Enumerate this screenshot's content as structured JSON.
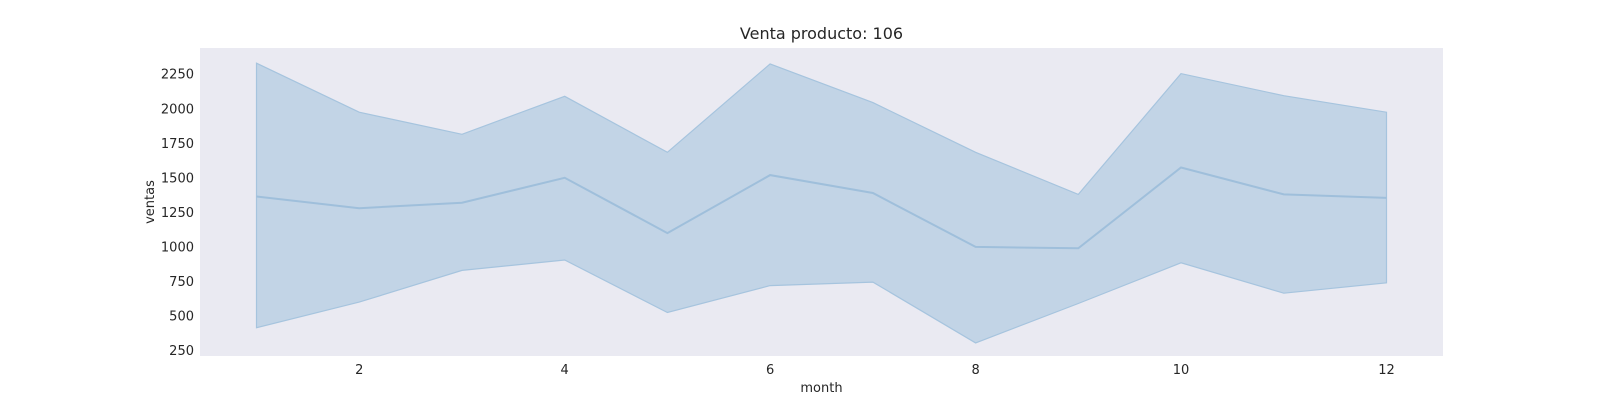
{
  "chart_data": {
    "type": "area",
    "title": "Venta producto: 106",
    "xlabel": "month",
    "ylabel": "ventas",
    "x": [
      1,
      2,
      3,
      4,
      5,
      6,
      7,
      8,
      9,
      10,
      11,
      12
    ],
    "series": [
      {
        "values": [
          1365,
          1280,
          1320,
          1500,
          1100,
          1520,
          1390,
          1000,
          990,
          1575,
          1380,
          1355
        ]
      }
    ],
    "band": {
      "upper": [
        2330,
        1975,
        1815,
        2090,
        1685,
        2325,
        2045,
        1685,
        1380,
        2255,
        2095,
        1975
      ],
      "lower": [
        415,
        600,
        830,
        905,
        525,
        720,
        745,
        305,
        590,
        885,
        665,
        740
      ]
    },
    "xticks": [
      2,
      4,
      6,
      8,
      10,
      12
    ],
    "yticks": [
      250,
      500,
      750,
      1000,
      1250,
      1500,
      1750,
      2000,
      2250
    ],
    "xlim": [
      0.45,
      12.55
    ],
    "ylim": [
      210,
      2440
    ],
    "grid": false,
    "colors": {
      "plot_background": "#eaeaf2",
      "band_fill": "#a6c4de",
      "line": "#9fbfdb",
      "text": "#262626"
    }
  }
}
